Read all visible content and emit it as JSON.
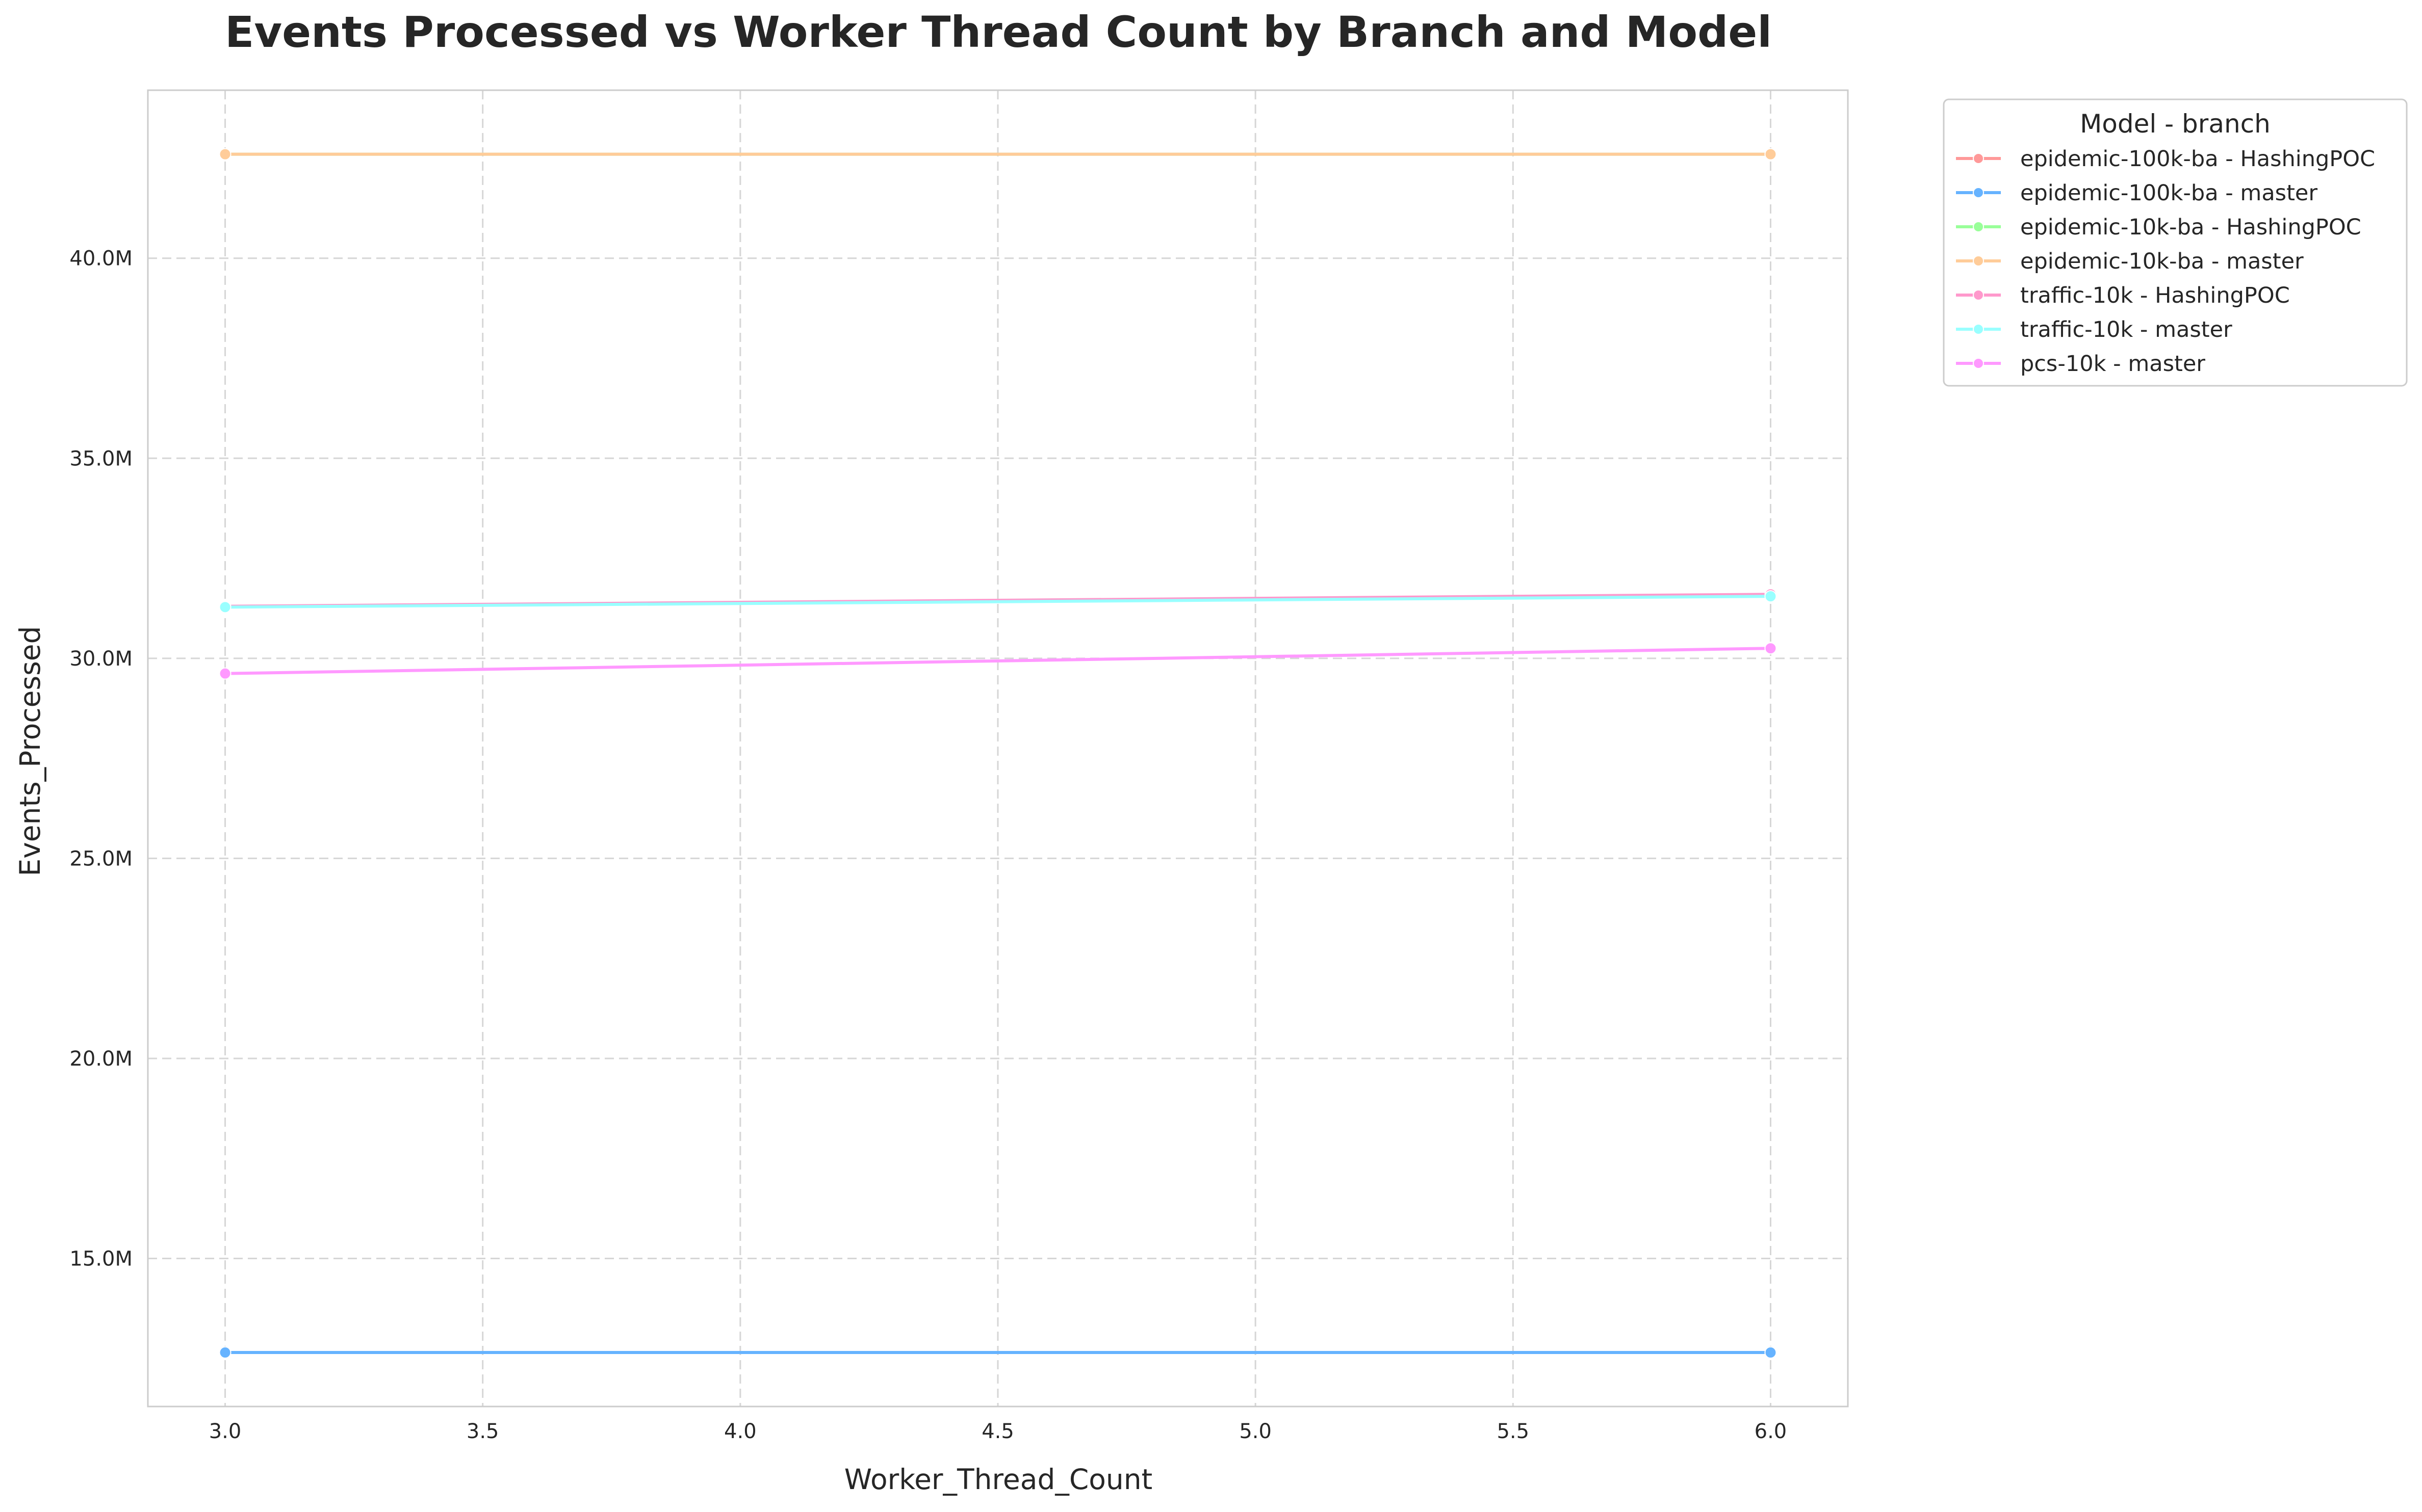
{
  "chart_data": {
    "type": "line",
    "title": "Events Processed vs Worker Thread Count by Branch and Model",
    "xlabel": "Worker_Thread_Count",
    "ylabel": "Events_Processed",
    "xlim": [
      2.85,
      6.15
    ],
    "ylim": [
      11.3,
      44.2
    ],
    "x_ticks": [
      3.0,
      3.5,
      4.0,
      4.5,
      5.0,
      5.5,
      6.0
    ],
    "x_tick_labels": [
      "3.0",
      "3.5",
      "4.0",
      "4.5",
      "5.0",
      "5.5",
      "6.0"
    ],
    "y_ticks": [
      15,
      20,
      25,
      30,
      35,
      40
    ],
    "y_tick_labels": [
      "15.0M",
      "20.0M",
      "25.0M",
      "30.0M",
      "35.0M",
      "40.0M"
    ],
    "y_unit": "M",
    "grid": true,
    "legend_title": "Model - branch",
    "legend_position": "outside-top-right",
    "series": [
      {
        "name": "epidemic-100k-ba - HashingPOC",
        "color": "#ff9999",
        "x": [
          3,
          6
        ],
        "values": [
          12.65,
          12.65
        ]
      },
      {
        "name": "epidemic-100k-ba - master",
        "color": "#66b3ff",
        "x": [
          3,
          6
        ],
        "values": [
          12.65,
          12.65
        ]
      },
      {
        "name": "epidemic-10k-ba - HashingPOC",
        "color": "#99ff99",
        "x": [
          3,
          6
        ],
        "values": [
          42.6,
          42.6
        ]
      },
      {
        "name": "epidemic-10k-ba - master",
        "color": "#ffcc99",
        "x": [
          3,
          6
        ],
        "values": [
          42.6,
          42.6
        ]
      },
      {
        "name": "traffic-10k - HashingPOC",
        "color": "#ff99cc",
        "x": [
          3,
          6
        ],
        "values": [
          31.3,
          31.6
        ]
      },
      {
        "name": "traffic-10k - master",
        "color": "#99ffff",
        "x": [
          3,
          6
        ],
        "values": [
          31.28,
          31.55
        ]
      },
      {
        "name": "pcs-10k - master",
        "color": "#ff99ff",
        "x": [
          3,
          6
        ],
        "values": [
          29.62,
          30.25
        ]
      }
    ]
  }
}
